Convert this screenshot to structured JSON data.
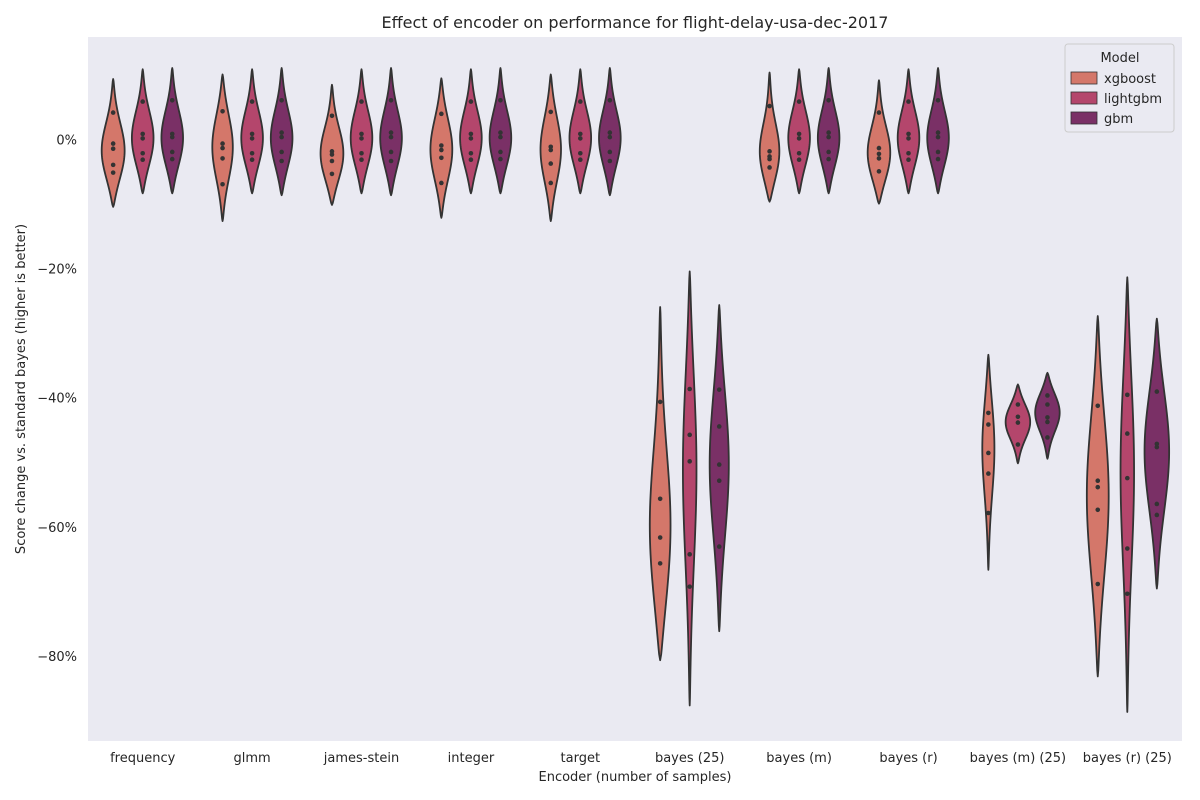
{
  "chart_data": {
    "type": "violin",
    "title": "Effect of encoder on performance for flight-delay-usa-dec-2017",
    "xlabel": "Encoder (number of samples)",
    "ylabel": "Score change vs. standard bayes (higher is better)",
    "ylim": [
      -93,
      16
    ],
    "yticks": [
      {
        "value": 0,
        "label": "0%"
      },
      {
        "value": -20,
        "label": "−20%"
      },
      {
        "value": -40,
        "label": "−40%"
      },
      {
        "value": -60,
        "label": "−60%"
      },
      {
        "value": -80,
        "label": "−80%"
      }
    ],
    "categories": [
      "frequency",
      "glmm",
      "james-stein",
      "integer",
      "target",
      "bayes (25)",
      "bayes (m)",
      "bayes (r)",
      "bayes (m) (25)",
      "bayes (r) (25)"
    ],
    "grid": false,
    "background": "#eaeaf2",
    "legend": {
      "title": "Model",
      "placement": "top-right",
      "entries": [
        "xgboost",
        "lightgbm",
        "gbm"
      ]
    },
    "series": [
      {
        "name": "xgboost",
        "color": "#d4776a",
        "violins": [
          {
            "lo": -10.3,
            "hi": 9.5,
            "mode": -2,
            "width": 0.85,
            "points": [
              4.3,
              -0.5,
              -1.3,
              -3.8,
              -5
            ]
          },
          {
            "lo": -12.5,
            "hi": 10.2,
            "mode": -1,
            "width": 0.75,
            "points": [
              4.5,
              -0.5,
              -1.2,
              -2.8,
              -6.8
            ]
          },
          {
            "lo": -10,
            "hi": 8.6,
            "mode": -2.5,
            "width": 0.85,
            "points": [
              3.8,
              -1.7,
              -2.2,
              -3.2,
              -5.2
            ]
          },
          {
            "lo": -12,
            "hi": 9.6,
            "mode": -1.5,
            "width": 0.8,
            "points": [
              4.1,
              -0.8,
              -1.5,
              -2.7,
              -6.6
            ]
          },
          {
            "lo": -12.5,
            "hi": 10.2,
            "mode": -1.5,
            "width": 0.75,
            "points": [
              4.4,
              -1,
              -1.5,
              -3.6,
              -6.6
            ]
          },
          {
            "lo": -80.5,
            "hi": -25.8,
            "mode": -62,
            "width": 0.8,
            "points": [
              -40.5,
              -55.5,
              -61.5,
              -65.5
            ]
          },
          {
            "lo": -9.5,
            "hi": 10.5,
            "mode": -2.5,
            "width": 0.75,
            "points": [
              5.3,
              -1.7,
              -2.5,
              -2.9,
              -4.2
            ]
          },
          {
            "lo": -9.8,
            "hi": 9.3,
            "mode": -2.5,
            "width": 0.85,
            "points": [
              4.3,
              -1.2,
              -2.1,
              -2.8,
              -4.8
            ]
          },
          {
            "lo": -66.5,
            "hi": -33.2,
            "mode": -47,
            "width": 0.45,
            "points": [
              -42.2,
              -44,
              -48.4,
              -51.6,
              -57.7
            ]
          },
          {
            "lo": -83,
            "hi": -27.2,
            "mode": -55,
            "width": 0.8,
            "points": [
              -41.1,
              -52.7,
              -53.7,
              -57.2,
              -68.7
            ]
          }
        ]
      },
      {
        "name": "lightgbm",
        "color": "#b4466c",
        "violins": [
          {
            "lo": -8.2,
            "hi": 11,
            "mode": 0,
            "width": 0.8,
            "points": [
              6,
              1,
              0.3,
              -2,
              -3
            ]
          },
          {
            "lo": -8.2,
            "hi": 11,
            "mode": 0,
            "width": 0.8,
            "points": [
              6,
              1,
              0.3,
              -2,
              -3
            ]
          },
          {
            "lo": -8.2,
            "hi": 11,
            "mode": 0,
            "width": 0.8,
            "points": [
              6,
              1,
              0.3,
              -2,
              -3
            ]
          },
          {
            "lo": -8.2,
            "hi": 11,
            "mode": 0,
            "width": 0.8,
            "points": [
              6,
              1,
              0.3,
              -2,
              -3
            ]
          },
          {
            "lo": -8.2,
            "hi": 11,
            "mode": 0,
            "width": 0.8,
            "points": [
              6,
              1,
              0.3,
              -2,
              -3
            ]
          },
          {
            "lo": -87.5,
            "hi": -20.3,
            "mode": -50,
            "width": 0.5,
            "points": [
              -38.5,
              -45.6,
              -49.7,
              -64.1,
              -69.1
            ]
          },
          {
            "lo": -8.2,
            "hi": 11,
            "mode": 0,
            "width": 0.8,
            "points": [
              6,
              1,
              0.3,
              -2,
              -3
            ]
          },
          {
            "lo": -8.2,
            "hi": 11,
            "mode": 0,
            "width": 0.8,
            "points": [
              6,
              1,
              0.3,
              -2,
              -3
            ]
          },
          {
            "lo": -50,
            "hi": -37.8,
            "mode": -43.5,
            "width": 0.9,
            "points": [
              -40.9,
              -42.8,
              -43.7,
              -47.1
            ]
          },
          {
            "lo": -88.5,
            "hi": -21.2,
            "mode": -50,
            "width": 0.5,
            "points": [
              -39.4,
              -45.4,
              -52.3,
              -63.2,
              -70.2
            ]
          }
        ]
      },
      {
        "name": "gbm",
        "color": "#7a3066",
        "violins": [
          {
            "lo": -8.2,
            "hi": 11.2,
            "mode": 0,
            "width": 0.8,
            "points": [
              6.2,
              1,
              0.5,
              -1.8,
              -2.9
            ]
          },
          {
            "lo": -8.5,
            "hi": 11.2,
            "mode": 0,
            "width": 0.8,
            "points": [
              6.2,
              1.2,
              0.5,
              -1.8,
              -3.2
            ]
          },
          {
            "lo": -8.5,
            "hi": 11.2,
            "mode": 0,
            "width": 0.8,
            "points": [
              6.2,
              1.2,
              0.5,
              -1.8,
              -3.2
            ]
          },
          {
            "lo": -8.2,
            "hi": 11.2,
            "mode": 0,
            "width": 0.8,
            "points": [
              6.2,
              1.2,
              0.5,
              -1.8,
              -2.9
            ]
          },
          {
            "lo": -8.5,
            "hi": 11.2,
            "mode": 0,
            "width": 0.8,
            "points": [
              6.2,
              1.2,
              0.5,
              -1.8,
              -3.2
            ]
          },
          {
            "lo": -76,
            "hi": -25.5,
            "mode": -50,
            "width": 0.7,
            "points": [
              -38.6,
              -44.3,
              -50.2,
              -52.7,
              -62.9
            ]
          },
          {
            "lo": -8.2,
            "hi": 11.2,
            "mode": 0,
            "width": 0.8,
            "points": [
              6.2,
              1.2,
              0.5,
              -1.8,
              -2.9
            ]
          },
          {
            "lo": -8.2,
            "hi": 11.2,
            "mode": 0,
            "width": 0.8,
            "points": [
              6.2,
              1.2,
              0.5,
              -1.8,
              -2.9
            ]
          },
          {
            "lo": -49.3,
            "hi": -36,
            "mode": -42,
            "width": 0.9,
            "points": [
              -39.5,
              -40.9,
              -42.9,
              -43.6,
              -46
            ]
          },
          {
            "lo": -69.4,
            "hi": -27.6,
            "mode": -48,
            "width": 0.9,
            "points": [
              -38.9,
              -47,
              -47.5,
              -56.3,
              -58
            ]
          }
        ]
      }
    ]
  }
}
